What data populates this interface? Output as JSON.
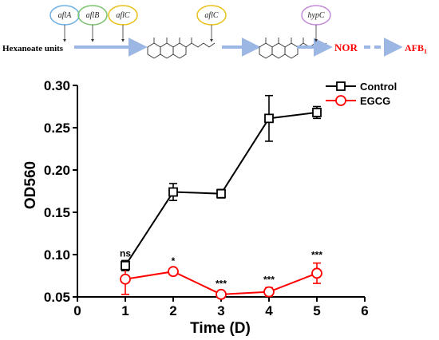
{
  "pathway": {
    "start_label": "Hexanoate units",
    "genes_step1": [
      "aflA",
      "aflB",
      "aflC"
    ],
    "gene_step2": "aflC",
    "gene_step3": "hypC",
    "product1": "NOR",
    "product2_main": "AFB",
    "product2_sub": "1",
    "colors": {
      "arrow": "#9db7e4",
      "product": "#ff0000",
      "aflA_ring": "#6fb0e0",
      "aflB_ring": "#7cc36e",
      "aflC_ring": "#e8c11a",
      "hypC_ring": "#c58ad8"
    }
  },
  "chart_data": {
    "type": "line",
    "xlabel": "Time (D)",
    "ylabel": "OD560",
    "xlim": [
      0,
      6
    ],
    "ylim": [
      0.05,
      0.3
    ],
    "xticks": [
      "0",
      "1",
      "2",
      "3",
      "4",
      "5",
      "6"
    ],
    "yticks": [
      "0.05",
      "0.10",
      "0.15",
      "0.20",
      "0.25",
      "0.30"
    ],
    "x": [
      1,
      2,
      3,
      4,
      5
    ],
    "series": [
      {
        "name": "Control",
        "marker": "square",
        "color": "#000000",
        "values": [
          0.087,
          0.174,
          0.172,
          0.261,
          0.268
        ],
        "errors": [
          0.006,
          0.01,
          0.005,
          0.027,
          0.007
        ]
      },
      {
        "name": "EGCG",
        "marker": "circle",
        "color": "#ff0000",
        "values": [
          0.071,
          0.08,
          0.053,
          0.056,
          0.078
        ],
        "errors": [
          0.018,
          0.003,
          0.003,
          0.005,
          0.012
        ]
      }
    ],
    "annotations": [
      {
        "x": 1,
        "text": "ns"
      },
      {
        "x": 2,
        "text": "*"
      },
      {
        "x": 3,
        "text": "***"
      },
      {
        "x": 4,
        "text": "***"
      },
      {
        "x": 5,
        "text": "***"
      }
    ],
    "legend_position": "top-right",
    "grid": false
  }
}
